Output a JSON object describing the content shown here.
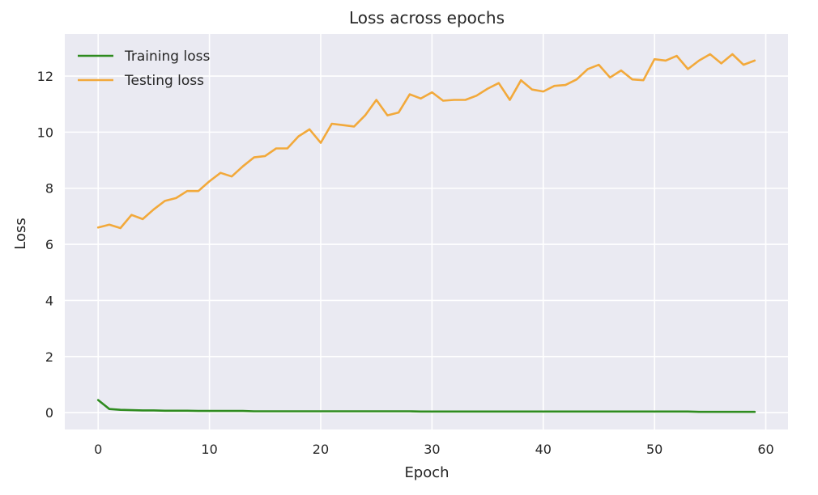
{
  "chart_data": {
    "type": "line",
    "title": "Loss across epochs",
    "xlabel": "Epoch",
    "ylabel": "Loss",
    "xlim": [
      -3,
      62
    ],
    "ylim": [
      -0.6,
      13.5
    ],
    "xticks": [
      0,
      10,
      20,
      30,
      40,
      50,
      60
    ],
    "yticks": [
      0,
      2,
      4,
      6,
      8,
      10,
      12
    ],
    "grid": true,
    "legend_position": "top-left",
    "series": [
      {
        "name": "Training loss",
        "color": "#2e8b1f",
        "x": [
          0,
          1,
          2,
          3,
          4,
          5,
          6,
          7,
          8,
          9,
          10,
          11,
          12,
          13,
          14,
          15,
          16,
          17,
          18,
          19,
          20,
          21,
          22,
          23,
          24,
          25,
          26,
          27,
          28,
          29,
          30,
          31,
          32,
          33,
          34,
          35,
          36,
          37,
          38,
          39,
          40,
          41,
          42,
          43,
          44,
          45,
          46,
          47,
          48,
          49,
          50,
          51,
          52,
          53,
          54,
          55,
          56,
          57,
          58,
          59
        ],
        "values": [
          0.45,
          0.13,
          0.1,
          0.09,
          0.08,
          0.08,
          0.07,
          0.07,
          0.07,
          0.06,
          0.06,
          0.06,
          0.06,
          0.06,
          0.05,
          0.05,
          0.05,
          0.05,
          0.05,
          0.05,
          0.05,
          0.05,
          0.05,
          0.05,
          0.05,
          0.05,
          0.05,
          0.05,
          0.05,
          0.04,
          0.04,
          0.04,
          0.04,
          0.04,
          0.04,
          0.04,
          0.04,
          0.04,
          0.04,
          0.04,
          0.04,
          0.04,
          0.04,
          0.04,
          0.04,
          0.04,
          0.04,
          0.04,
          0.04,
          0.04,
          0.04,
          0.04,
          0.04,
          0.04,
          0.03,
          0.03,
          0.03,
          0.03,
          0.03,
          0.03
        ]
      },
      {
        "name": "Testing loss",
        "color": "#f2a93b",
        "x": [
          0,
          1,
          2,
          3,
          4,
          5,
          6,
          7,
          8,
          9,
          10,
          11,
          12,
          13,
          14,
          15,
          16,
          17,
          18,
          19,
          20,
          21,
          22,
          23,
          24,
          25,
          26,
          27,
          28,
          29,
          30,
          31,
          32,
          33,
          34,
          35,
          36,
          37,
          38,
          39,
          40,
          41,
          42,
          43,
          44,
          45,
          46,
          47,
          48,
          49,
          50,
          51,
          52,
          53,
          54,
          55,
          56,
          57,
          58,
          59
        ],
        "values": [
          6.6,
          6.7,
          6.58,
          7.05,
          6.9,
          7.25,
          7.55,
          7.65,
          7.9,
          7.9,
          8.25,
          8.55,
          8.42,
          8.78,
          9.1,
          9.15,
          9.42,
          9.42,
          9.85,
          10.1,
          9.62,
          10.3,
          10.25,
          10.2,
          10.6,
          11.15,
          10.6,
          10.7,
          11.35,
          11.2,
          11.42,
          11.12,
          11.15,
          11.15,
          11.3,
          11.55,
          11.75,
          11.15,
          11.85,
          11.52,
          11.45,
          11.65,
          11.68,
          11.88,
          12.25,
          12.4,
          11.95,
          12.2,
          11.88,
          11.85,
          12.6,
          12.55,
          12.72,
          12.25,
          12.55,
          12.78,
          12.45,
          12.78,
          12.4,
          12.55
        ]
      }
    ]
  }
}
